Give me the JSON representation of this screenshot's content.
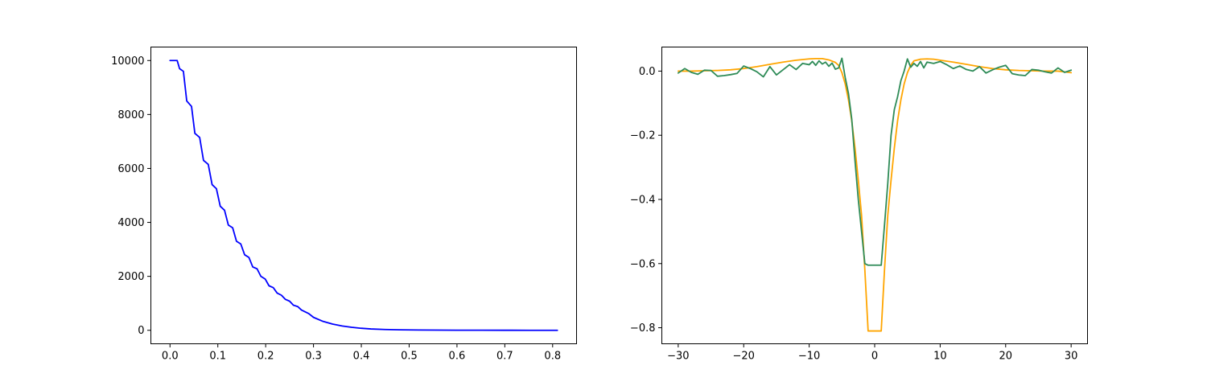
{
  "chart_data": [
    {
      "type": "line",
      "title": "",
      "xlabel": "",
      "ylabel": "",
      "xlim": [
        -0.04,
        0.85
      ],
      "ylim": [
        -500,
        10500
      ],
      "xticks": [
        0.0,
        0.1,
        0.2,
        0.3,
        0.4,
        0.5,
        0.6,
        0.7,
        0.8
      ],
      "xtick_labels": [
        "0.0",
        "0.1",
        "0.2",
        "0.3",
        "0.4",
        "0.5",
        "0.6",
        "0.7",
        "0.8"
      ],
      "yticks": [
        0,
        2000,
        4000,
        6000,
        8000,
        10000
      ],
      "ytick_labels": [
        "0",
        "2000",
        "4000",
        "6000",
        "8000",
        "10000"
      ],
      "grid": false,
      "series": [
        {
          "color": "#0000ff",
          "x": [
            0.0,
            0.015,
            0.02,
            0.028,
            0.035,
            0.045,
            0.052,
            0.062,
            0.07,
            0.08,
            0.088,
            0.097,
            0.105,
            0.114,
            0.122,
            0.131,
            0.139,
            0.148,
            0.156,
            0.165,
            0.173,
            0.182,
            0.19,
            0.199,
            0.207,
            0.216,
            0.224,
            0.233,
            0.241,
            0.25,
            0.258,
            0.267,
            0.275,
            0.29,
            0.3,
            0.32,
            0.34,
            0.36,
            0.38,
            0.4,
            0.42,
            0.45,
            0.48,
            0.52,
            0.56,
            0.6,
            0.65,
            0.7,
            0.75,
            0.81
          ],
          "y": [
            10000,
            10000,
            9700,
            9600,
            8500,
            8300,
            7300,
            7150,
            6300,
            6150,
            5400,
            5250,
            4600,
            4450,
            3900,
            3800,
            3300,
            3200,
            2800,
            2700,
            2350,
            2280,
            2000,
            1900,
            1650,
            1580,
            1380,
            1300,
            1150,
            1080,
            930,
            880,
            750,
            620,
            480,
            330,
            230,
            160,
            110,
            75,
            50,
            30,
            18,
            10,
            6,
            4,
            2,
            1,
            0,
            0
          ]
        }
      ]
    },
    {
      "type": "line",
      "title": "",
      "xlabel": "",
      "ylabel": "",
      "xlim": [
        -32.5,
        32.5
      ],
      "ylim": [
        -0.85,
        0.075
      ],
      "xticks": [
        -30,
        -20,
        -10,
        0,
        10,
        20,
        30
      ],
      "xtick_labels": [
        "−30",
        "−20",
        "−10",
        "0",
        "10",
        "20",
        "30"
      ],
      "yticks": [
        0.0,
        -0.2,
        -0.4,
        -0.6,
        -0.8
      ],
      "ytick_labels": [
        "0.0",
        "−0.2",
        "−0.4",
        "−0.6",
        "−0.8"
      ],
      "grid": false,
      "series": [
        {
          "color": "#ffa500",
          "x": [
            -30,
            -28,
            -26,
            -24,
            -22,
            -20,
            -18,
            -16,
            -14,
            -12,
            -10,
            -9,
            -8,
            -7,
            -6,
            -5.5,
            -5,
            -4.5,
            -4,
            -3.5,
            -3,
            -2.5,
            -2,
            -1.5,
            -1,
            1,
            1.5,
            2,
            2.5,
            3,
            3.5,
            4,
            4.5,
            5,
            5.5,
            6,
            7,
            8,
            9,
            10,
            12,
            14,
            16,
            18,
            20,
            22,
            24,
            26,
            28,
            30
          ],
          "y": [
            0.0,
            0.0,
            0.001,
            0.002,
            0.004,
            0.008,
            0.014,
            0.021,
            0.028,
            0.034,
            0.038,
            0.039,
            0.039,
            0.035,
            0.027,
            0.018,
            -0.005,
            -0.04,
            -0.09,
            -0.155,
            -0.24,
            -0.34,
            -0.45,
            -0.62,
            -0.81,
            -0.81,
            -0.62,
            -0.45,
            -0.34,
            -0.24,
            -0.155,
            -0.09,
            -0.04,
            -0.005,
            0.018,
            0.032,
            0.037,
            0.038,
            0.037,
            0.034,
            0.028,
            0.021,
            0.014,
            0.008,
            0.004,
            0.002,
            0.001,
            0.0,
            0.0,
            -0.005
          ]
        },
        {
          "color": "#2e8b57",
          "x": [
            -30,
            -29,
            -28,
            -27,
            -26,
            -25,
            -24,
            -23,
            -22,
            -21,
            -20,
            -19,
            -18,
            -17,
            -16,
            -15,
            -14,
            -13,
            -12,
            -11,
            -10,
            -9.5,
            -9,
            -8.5,
            -8,
            -7.5,
            -7,
            -6.5,
            -6,
            -5.5,
            -5,
            -4.5,
            -4,
            -3.5,
            -3,
            -2.5,
            -2,
            -1.5,
            -1,
            1,
            1.5,
            2,
            2.5,
            3,
            3.5,
            4,
            4.5,
            5,
            5.5,
            6,
            6.5,
            7,
            7.5,
            8,
            9,
            10,
            11,
            12,
            13,
            14,
            15,
            16,
            17,
            18,
            19,
            20,
            21,
            22,
            23,
            24,
            25,
            26,
            27,
            28,
            29,
            30
          ],
          "y": [
            -0.006,
            0.008,
            -0.004,
            -0.01,
            0.003,
            0.002,
            -0.016,
            -0.014,
            -0.011,
            -0.007,
            0.016,
            0.008,
            -0.002,
            -0.018,
            0.014,
            -0.012,
            0.004,
            0.02,
            0.005,
            0.024,
            0.02,
            0.03,
            0.018,
            0.032,
            0.022,
            0.028,
            0.015,
            0.025,
            0.006,
            0.01,
            0.04,
            -0.02,
            -0.07,
            -0.15,
            -0.28,
            -0.4,
            -0.5,
            -0.6,
            -0.605,
            -0.605,
            -0.48,
            -0.35,
            -0.2,
            -0.12,
            -0.08,
            -0.03,
            0.0,
            0.038,
            0.012,
            0.024,
            0.015,
            0.03,
            0.01,
            0.028,
            0.024,
            0.03,
            0.02,
            0.008,
            0.016,
            0.005,
            0.0,
            0.014,
            -0.006,
            0.004,
            0.012,
            0.018,
            -0.008,
            -0.012,
            -0.014,
            0.005,
            0.003,
            -0.002,
            -0.006,
            0.01,
            -0.004,
            0.003
          ]
        }
      ]
    }
  ]
}
